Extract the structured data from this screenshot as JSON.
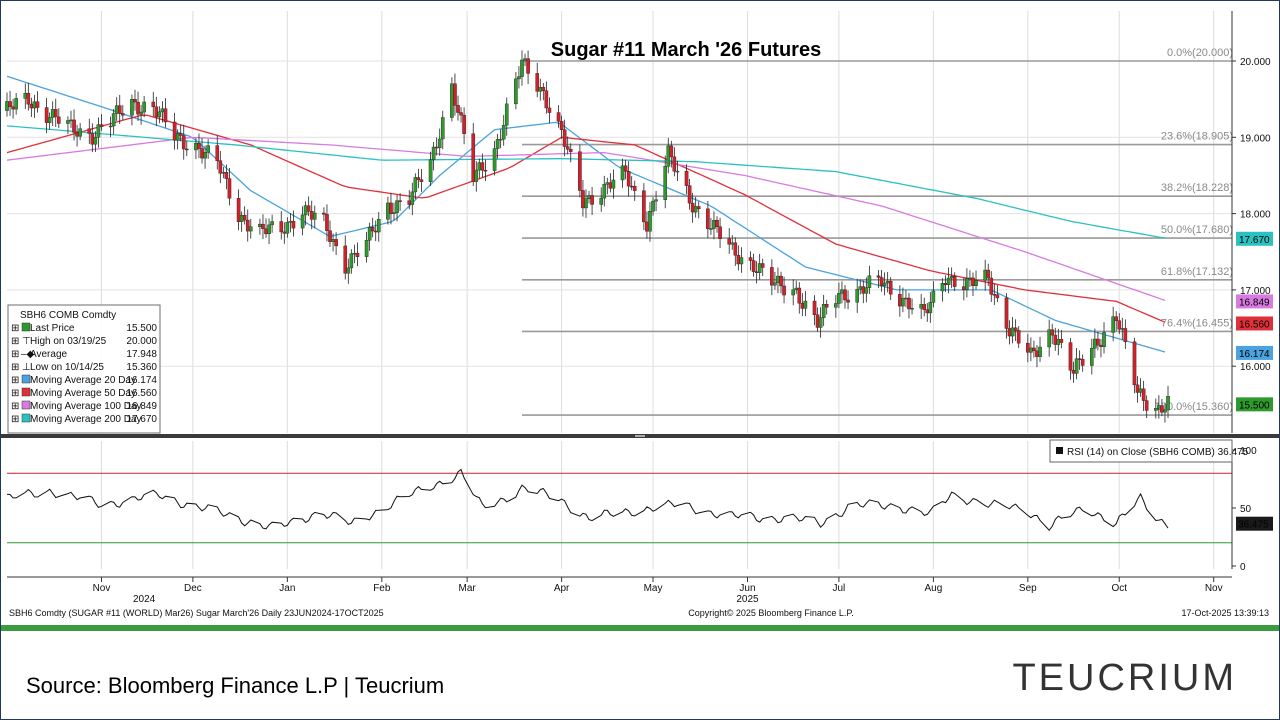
{
  "chart_data": {
    "type": "candlestick",
    "title": "Sugar #11 March '26 Futures",
    "price_axis": {
      "ylim": [
        15.0,
        20.5
      ],
      "ticks": [
        "20.000",
        "19.000",
        "18.000",
        "17.000",
        "16.000"
      ]
    },
    "rsi_axis": {
      "ylim": [
        -2,
        105
      ],
      "ticks": [
        "100",
        "50",
        "0"
      ],
      "overbought": 80,
      "oversold": 20
    },
    "x_axis": {
      "start": "2024-10-01",
      "end": "2025-11-07",
      "months": [
        {
          "label": "Nov",
          "date": "2024-11-01"
        },
        {
          "label": "Dec",
          "date": "2024-12-01"
        },
        {
          "label": "Jan",
          "date": "2025-01-01"
        },
        {
          "label": "Feb",
          "date": "2025-02-01"
        },
        {
          "label": "Mar",
          "date": "2025-03-01"
        },
        {
          "label": "Apr",
          "date": "2025-04-01"
        },
        {
          "label": "May",
          "date": "2025-05-01"
        },
        {
          "label": "Jun",
          "date": "2025-06-01"
        },
        {
          "label": "Jul",
          "date": "2025-07-01"
        },
        {
          "label": "Aug",
          "date": "2025-08-01"
        },
        {
          "label": "Sep",
          "date": "2025-09-01"
        },
        {
          "label": "Oct",
          "date": "2025-10-01"
        },
        {
          "label": "Nov",
          "date": "2025-11-01"
        }
      ],
      "years": [
        {
          "label": "2024",
          "date": "2024-11-15"
        },
        {
          "label": "2025",
          "date": "2025-06-01"
        }
      ]
    },
    "fibonacci": [
      {
        "label": "0.0%(20.000)",
        "value": 20.0
      },
      {
        "label": "23.6%(18.905)",
        "value": 18.905
      },
      {
        "label": "38.2%(18.228)",
        "value": 18.228
      },
      {
        "label": "50.0%(17.680)",
        "value": 17.68
      },
      {
        "label": "61.8%(17.132)",
        "value": 17.132
      },
      {
        "label": "76.4%(16.455)",
        "value": 16.455
      },
      {
        "label": "100.0%(15.360)",
        "value": 15.36
      }
    ],
    "fib_start": "2025-03-19",
    "price_anchors": [
      [
        "2024-10-01",
        19.35
      ],
      [
        "2024-10-08",
        19.5
      ],
      [
        "2024-10-15",
        19.3
      ],
      [
        "2024-10-22",
        19.1
      ],
      [
        "2024-10-29",
        19.05
      ],
      [
        "2024-11-04",
        19.2
      ],
      [
        "2024-11-11",
        19.45
      ],
      [
        "2024-11-18",
        19.4
      ],
      [
        "2024-11-25",
        19.0
      ],
      [
        "2024-12-02",
        18.9
      ],
      [
        "2024-12-09",
        18.65
      ],
      [
        "2024-12-16",
        18.0
      ],
      [
        "2024-12-23",
        17.75
      ],
      [
        "2024-12-30",
        17.8
      ],
      [
        "2025-01-06",
        18.05
      ],
      [
        "2025-01-13",
        17.85
      ],
      [
        "2025-01-20",
        17.35
      ],
      [
        "2025-01-27",
        17.6
      ],
      [
        "2025-02-03",
        18.1
      ],
      [
        "2025-02-10",
        18.2
      ],
      [
        "2025-02-17",
        18.65
      ],
      [
        "2025-02-24",
        19.7
      ],
      [
        "2025-03-03",
        18.45
      ],
      [
        "2025-03-10",
        18.85
      ],
      [
        "2025-03-19",
        19.95
      ],
      [
        "2025-03-26",
        19.6
      ],
      [
        "2025-04-01",
        19.05
      ],
      [
        "2025-04-08",
        18.15
      ],
      [
        "2025-04-15",
        18.35
      ],
      [
        "2025-04-22",
        18.5
      ],
      [
        "2025-04-29",
        17.9
      ],
      [
        "2025-05-06",
        18.75
      ],
      [
        "2025-05-13",
        18.2
      ],
      [
        "2025-05-20",
        17.85
      ],
      [
        "2025-05-27",
        17.5
      ],
      [
        "2025-06-03",
        17.35
      ],
      [
        "2025-06-10",
        17.05
      ],
      [
        "2025-06-17",
        17.0
      ],
      [
        "2025-06-24",
        16.55
      ],
      [
        "2025-07-01",
        16.95
      ],
      [
        "2025-07-08",
        17.0
      ],
      [
        "2025-07-15",
        17.1
      ],
      [
        "2025-07-22",
        16.9
      ],
      [
        "2025-07-29",
        16.65
      ],
      [
        "2025-08-05",
        17.2
      ],
      [
        "2025-08-12",
        17.05
      ],
      [
        "2025-08-19",
        17.15
      ],
      [
        "2025-08-26",
        16.5
      ],
      [
        "2025-09-02",
        16.1
      ],
      [
        "2025-09-09",
        16.5
      ],
      [
        "2025-09-16",
        15.9
      ],
      [
        "2025-09-23",
        16.3
      ],
      [
        "2025-09-30",
        16.65
      ],
      [
        "2025-10-07",
        15.65
      ],
      [
        "2025-10-14",
        15.45
      ],
      [
        "2025-10-17",
        15.5
      ]
    ],
    "ma_series": [
      {
        "name": "Moving Average 20 Day",
        "color": "#4aa3df",
        "points": [
          [
            "2024-10-01",
            19.8
          ],
          [
            "2024-11-01",
            19.4
          ],
          [
            "2024-12-01",
            19.0
          ],
          [
            "2024-12-20",
            18.3
          ],
          [
            "2025-01-15",
            17.7
          ],
          [
            "2025-02-05",
            17.9
          ],
          [
            "2025-02-20",
            18.5
          ],
          [
            "2025-03-10",
            19.1
          ],
          [
            "2025-03-31",
            19.2
          ],
          [
            "2025-04-20",
            18.6
          ],
          [
            "2025-05-20",
            18.1
          ],
          [
            "2025-06-20",
            17.3
          ],
          [
            "2025-07-20",
            17.0
          ],
          [
            "2025-08-20",
            17.0
          ],
          [
            "2025-09-10",
            16.6
          ],
          [
            "2025-10-17",
            16.174
          ]
        ]
      },
      {
        "name": "Moving Average 50 Day",
        "color": "#e0303a",
        "points": [
          [
            "2024-10-01",
            18.8
          ],
          [
            "2024-11-15",
            19.3
          ],
          [
            "2024-12-20",
            18.9
          ],
          [
            "2025-01-20",
            18.35
          ],
          [
            "2025-02-15",
            18.2
          ],
          [
            "2025-03-15",
            18.6
          ],
          [
            "2025-04-01",
            19.0
          ],
          [
            "2025-04-25",
            18.9
          ],
          [
            "2025-05-31",
            18.25
          ],
          [
            "2025-06-30",
            17.6
          ],
          [
            "2025-07-31",
            17.25
          ],
          [
            "2025-08-31",
            17.0
          ],
          [
            "2025-09-30",
            16.85
          ],
          [
            "2025-10-17",
            16.56
          ]
        ]
      },
      {
        "name": "Moving Average 100 Day",
        "color": "#d77be0",
        "points": [
          [
            "2024-10-01",
            18.7
          ],
          [
            "2024-12-01",
            19.0
          ],
          [
            "2025-01-15",
            18.9
          ],
          [
            "2025-03-01",
            18.75
          ],
          [
            "2025-04-15",
            18.8
          ],
          [
            "2025-05-31",
            18.5
          ],
          [
            "2025-07-15",
            18.1
          ],
          [
            "2025-08-31",
            17.5
          ],
          [
            "2025-10-17",
            16.849
          ]
        ]
      },
      {
        "name": "Moving Average 200 Day",
        "color": "#2bc1c1",
        "points": [
          [
            "2024-10-01",
            19.15
          ],
          [
            "2024-12-15",
            18.9
          ],
          [
            "2025-02-01",
            18.7
          ],
          [
            "2025-04-01",
            18.72
          ],
          [
            "2025-05-15",
            18.68
          ],
          [
            "2025-06-30",
            18.55
          ],
          [
            "2025-08-15",
            18.2
          ],
          [
            "2025-09-15",
            17.9
          ],
          [
            "2025-10-17",
            17.67
          ]
        ]
      }
    ],
    "rsi_anchors": [
      [
        "2024-10-01",
        58
      ],
      [
        "2024-10-15",
        65
      ],
      [
        "2024-11-01",
        53
      ],
      [
        "2024-11-20",
        61
      ],
      [
        "2024-12-01",
        52
      ],
      [
        "2024-12-15",
        42
      ],
      [
        "2024-12-28",
        32
      ],
      [
        "2025-01-12",
        47
      ],
      [
        "2025-01-22",
        36
      ],
      [
        "2025-02-05",
        55
      ],
      [
        "2025-02-20",
        72
      ],
      [
        "2025-02-27",
        80
      ],
      [
        "2025-03-06",
        50
      ],
      [
        "2025-03-13",
        58
      ],
      [
        "2025-03-19",
        67
      ],
      [
        "2025-03-31",
        58
      ],
      [
        "2025-04-10",
        41
      ],
      [
        "2025-04-25",
        48
      ],
      [
        "2025-05-10",
        53
      ],
      [
        "2025-05-25",
        43
      ],
      [
        "2025-06-15",
        41
      ],
      [
        "2025-06-25",
        37
      ],
      [
        "2025-07-05",
        52
      ],
      [
        "2025-07-20",
        52
      ],
      [
        "2025-07-31",
        44
      ],
      [
        "2025-08-07",
        62
      ],
      [
        "2025-08-20",
        52
      ],
      [
        "2025-08-31",
        50
      ],
      [
        "2025-09-08",
        34
      ],
      [
        "2025-09-20",
        51
      ],
      [
        "2025-09-30",
        36
      ],
      [
        "2025-10-08",
        58
      ],
      [
        "2025-10-14",
        40
      ],
      [
        "2025-10-17",
        37
      ]
    ],
    "badges": [
      {
        "value": 17.67,
        "text": "17.670",
        "color": "#2bc1c1"
      },
      {
        "value": 16.849,
        "text": "16.849",
        "color": "#d77be0"
      },
      {
        "value": 16.56,
        "text": "16.560",
        "color": "#e0303a"
      },
      {
        "value": 16.174,
        "text": "16.174",
        "color": "#4aa3df"
      },
      {
        "value": 15.5,
        "text": "15.500",
        "color": "#2e9a2e"
      }
    ],
    "rsi_badge": {
      "value": 36.475,
      "text": "36.475"
    },
    "legend": {
      "title": "SBH6 COMB Comdty",
      "rows": [
        {
          "label": "Last Price",
          "value": "15.500",
          "marker": "box",
          "color": "#2e9a2e"
        },
        {
          "label": "High on 03/19/25",
          "value": "20.000",
          "marker": "high"
        },
        {
          "label": "Average",
          "value": "17.948",
          "marker": "avg"
        },
        {
          "label": "Low on 10/14/25",
          "value": "15.360",
          "marker": "low"
        },
        {
          "label": "Moving Average 20 Day",
          "value": "16.174",
          "marker": "box",
          "color": "#4aa3df"
        },
        {
          "label": "Moving Average 50 Day",
          "value": "16.560",
          "marker": "box",
          "color": "#e0303a"
        },
        {
          "label": "Moving Average 100 Day",
          "value": "16.849",
          "marker": "box",
          "color": "#d77be0"
        },
        {
          "label": "Moving Average 200 Day",
          "value": "17.670",
          "marker": "box",
          "color": "#2bc1c1"
        }
      ]
    },
    "rsi_legend": "RSI (14)  on Close (SBH6 COMB) 36.475",
    "colors": {
      "up": "#2e9a2e",
      "down": "#d4202a",
      "divider": "#3a3a3a",
      "footer_bar": "#3e9a3e"
    }
  },
  "footer": {
    "left": "SBH6 Comdty (SUGAR #11 (WORLD) Mar26) Sugar March'26 Daily 23JUN2024-17OCT2025",
    "center": "Copyright© 2025 Bloomberg Finance L.P.",
    "right": "17-Oct-2025 13:39:13"
  },
  "source_text": "Source: Bloomberg Finance L.P | Teucrium",
  "logo_text": "TEUCRIUM"
}
